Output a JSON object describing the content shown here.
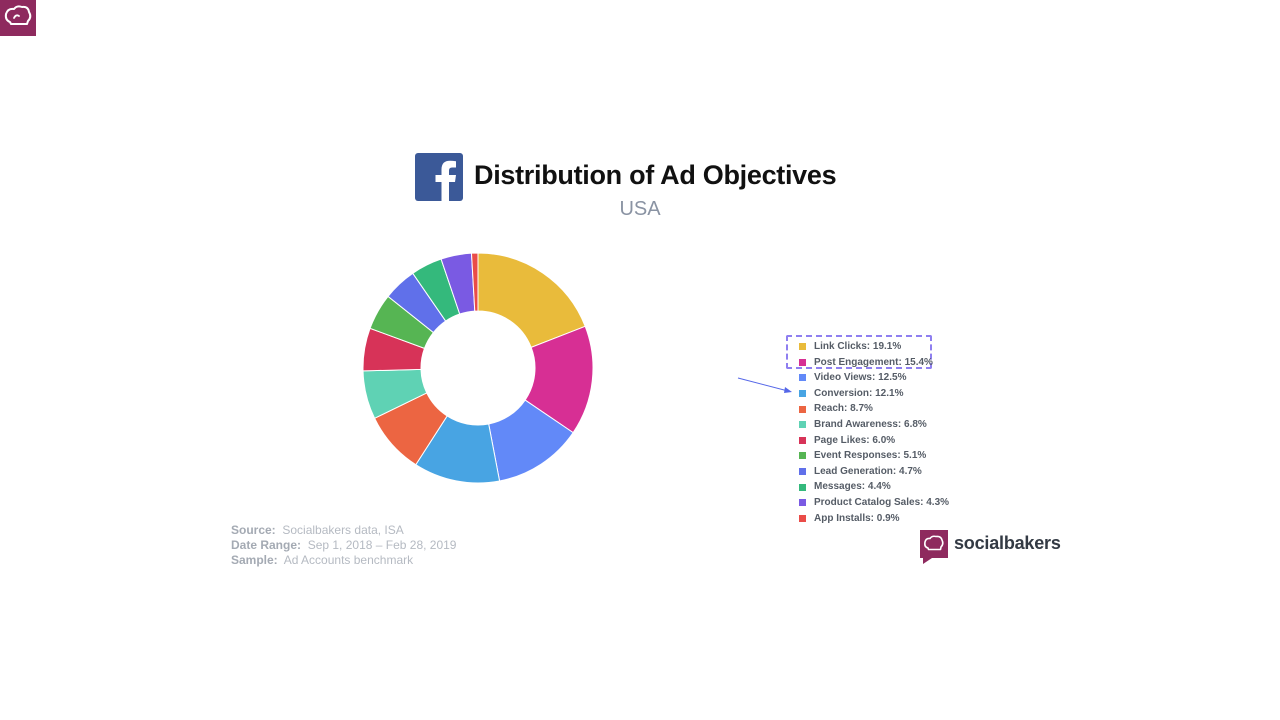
{
  "header": {
    "title": "Distribution of Ad Objectives",
    "subtitle": "USA"
  },
  "chart_data": {
    "type": "pie",
    "style": "donut",
    "title": "Distribution of Ad Objectives",
    "subtitle": "USA",
    "legend_position": "right",
    "categories": [
      "Link Clicks",
      "Post Engagement",
      "Video Views",
      "Conversion",
      "Reach",
      "Brand Awareness",
      "Page Likes",
      "Event Responses",
      "Lead Generation",
      "Messages",
      "Product Catalog Sales",
      "App Installs"
    ],
    "values": [
      19.1,
      15.4,
      12.5,
      12.1,
      8.7,
      6.8,
      6.0,
      5.1,
      4.7,
      4.4,
      4.3,
      0.9
    ],
    "colors": [
      "#e9bb3b",
      "#d72f94",
      "#6289f8",
      "#48a4e3",
      "#ec6542",
      "#5fd2b4",
      "#d73358",
      "#56b553",
      "#6070ea",
      "#34b97c",
      "#7a5ae3",
      "#ea4c48"
    ],
    "legend_labels": [
      "Link Clicks: 19.1%",
      "Post Engagement: 15.4%",
      "Video Views: 12.5%",
      "Conversion: 12.1%",
      "Reach: 8.7%",
      "Brand Awareness: 6.8%",
      "Page Likes: 6.0%",
      "Event Responses: 5.1%",
      "Lead Generation: 4.7%",
      "Messages: 4.4%",
      "Product Catalog Sales: 4.3%",
      "App Installs: 0.9%"
    ]
  },
  "footer": {
    "source_label": "Source:",
    "source_value": "Socialbakers data, ISA",
    "date_label": "Date Range:",
    "date_value": "Sep 1, 2018  – Feb 28, 2019",
    "sample_label": "Sample:",
    "sample_value": "Ad Accounts benchmark"
  },
  "brand": {
    "name": "socialbakers",
    "color": "#8e2a5e"
  },
  "icons": {
    "corner": "socialbakers-logo-icon",
    "facebook": "facebook-icon",
    "brand": "socialbakers-logo-icon"
  }
}
